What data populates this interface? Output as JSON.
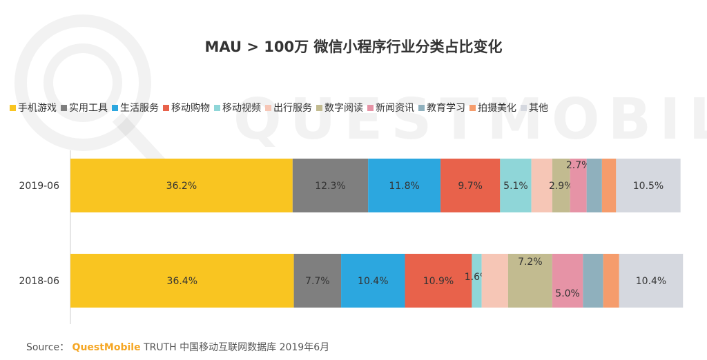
{
  "chart_data": {
    "type": "bar",
    "orientation": "horizontal",
    "stacked": true,
    "title": "MAU > 100万 微信小程序行业分类占比变化",
    "categories": [
      "2019-06",
      "2018-06"
    ],
    "series": [
      {
        "name": "手机游戏",
        "color": "#f9c521",
        "values": [
          36.2,
          36.4
        ],
        "labels": [
          "36.2%",
          "36.4%"
        ]
      },
      {
        "name": "实用工具",
        "color": "#7f7f7f",
        "values": [
          12.3,
          7.7
        ],
        "labels": [
          "12.3%",
          "7.7%"
        ]
      },
      {
        "name": "生活服务",
        "color": "#2ca7df",
        "values": [
          11.8,
          10.4
        ],
        "labels": [
          "11.8%",
          "10.4%"
        ]
      },
      {
        "name": "移动购物",
        "color": "#e8624b",
        "values": [
          9.7,
          10.9
        ],
        "labels": [
          "9.7%",
          "10.9%"
        ]
      },
      {
        "name": "移动视频",
        "color": "#8fd6d8",
        "values": [
          5.1,
          1.6
        ],
        "labels": [
          "5.1%",
          "1.6%"
        ]
      },
      {
        "name": "出行服务",
        "color": "#f6c6b6",
        "values": [
          3.4,
          4.3
        ],
        "labels": [
          "",
          ""
        ]
      },
      {
        "name": "数字阅读",
        "color": "#c2bb90",
        "values": [
          2.9,
          7.2
        ],
        "labels": [
          "2.9%",
          "7.2%"
        ]
      },
      {
        "name": "新闻资讯",
        "color": "#e693a6",
        "values": [
          2.7,
          5.0
        ],
        "labels": [
          "2.7%",
          "5.0%"
        ]
      },
      {
        "name": "教育学习",
        "color": "#8fb0bd",
        "values": [
          2.5,
          3.3
        ],
        "labels": [
          "",
          ""
        ]
      },
      {
        "name": "拍摄美化",
        "color": "#f59c6c",
        "values": [
          2.3,
          2.6
        ],
        "labels": [
          "",
          ""
        ]
      },
      {
        "name": "其他",
        "color": "#d5d8df",
        "values": [
          10.5,
          10.4
        ],
        "labels": [
          "10.5%",
          "10.4%"
        ]
      }
    ],
    "xlim": [
      0,
      100
    ],
    "legend_position": "top",
    "grid": false
  },
  "watermark": "QUESTMOBILE",
  "source": {
    "prefix": "Source：",
    "brand": "QuestMobile",
    "text": "TRUTH 中国移动互联网数据库 2019年6月"
  }
}
